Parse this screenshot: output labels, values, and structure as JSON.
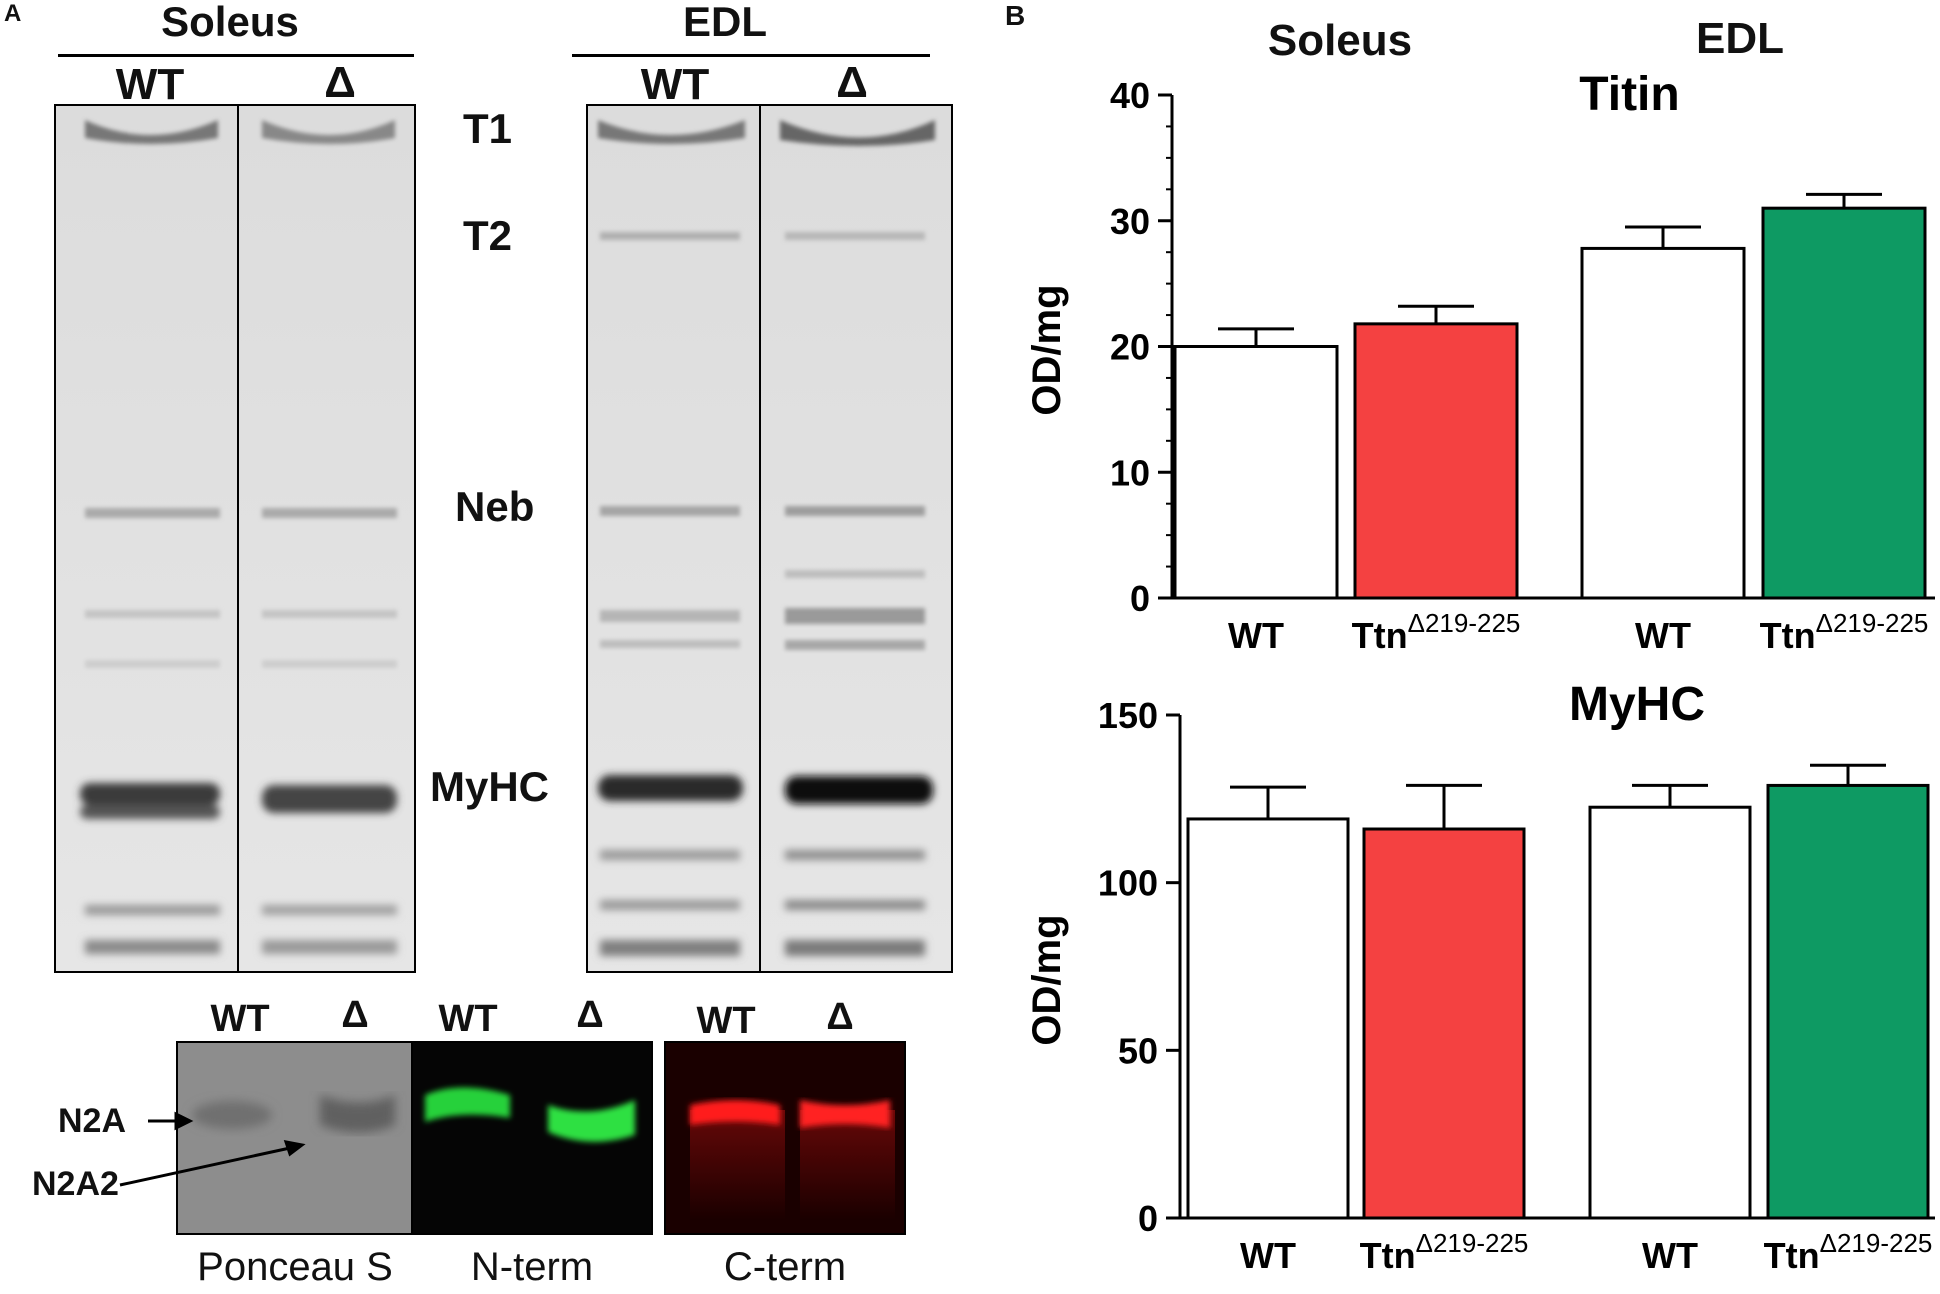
{
  "panel_a": {
    "panel_label": "A",
    "gel": {
      "soleus": {
        "title": "Soleus",
        "lanes": [
          "WT",
          "Δ"
        ]
      },
      "edl": {
        "title": "EDL",
        "lanes": [
          "WT",
          "Δ"
        ]
      },
      "band_labels": [
        "T1",
        "T2",
        "Neb",
        "MyHC"
      ]
    },
    "western": {
      "lanes": [
        "WT",
        "Δ",
        "WT",
        "Δ",
        "WT",
        "Δ"
      ],
      "markers": [
        "N2A",
        "N2A2"
      ],
      "captions": [
        "Ponceau S",
        "N-term",
        "C-term"
      ],
      "colors": {
        "ponceau": "#8d8d8d",
        "n_term": "#27d13a",
        "c_term": "#ff1a1a"
      }
    }
  },
  "panel_b": {
    "panel_label": "B",
    "group_titles": [
      "Soleus",
      "EDL"
    ],
    "colors": {
      "wt": "#ffffff",
      "ttn_soleus": "#f44141",
      "ttn_edl": "#0e9a63",
      "axis": "#000000"
    }
  },
  "chart_data": [
    {
      "type": "bar",
      "title": "Titin",
      "ylabel": "OD/mg",
      "ylim": [
        0,
        40
      ],
      "yticks": [
        "0",
        "10",
        "20",
        "30",
        "40"
      ],
      "categories": [
        "WT",
        "Ttn",
        "WT",
        "Ttn"
      ],
      "category_superscripts": [
        "",
        "Δ219-225",
        "",
        "Δ219-225"
      ],
      "values": [
        20,
        21.8,
        27.8,
        31
      ],
      "errors": [
        1.4,
        1.4,
        1.7,
        1.1
      ]
    },
    {
      "type": "bar",
      "title": "MyHC",
      "ylabel": "OD/mg",
      "ylim": [
        0,
        150
      ],
      "yticks": [
        "0",
        "50",
        "100",
        "150"
      ],
      "categories": [
        "WT",
        "Ttn",
        "WT",
        "Ttn"
      ],
      "category_superscripts": [
        "",
        "Δ219-225",
        "",
        "Δ219-225"
      ],
      "values": [
        119,
        116,
        122.5,
        129
      ],
      "errors": [
        9.5,
        13,
        6.5,
        6
      ]
    }
  ]
}
